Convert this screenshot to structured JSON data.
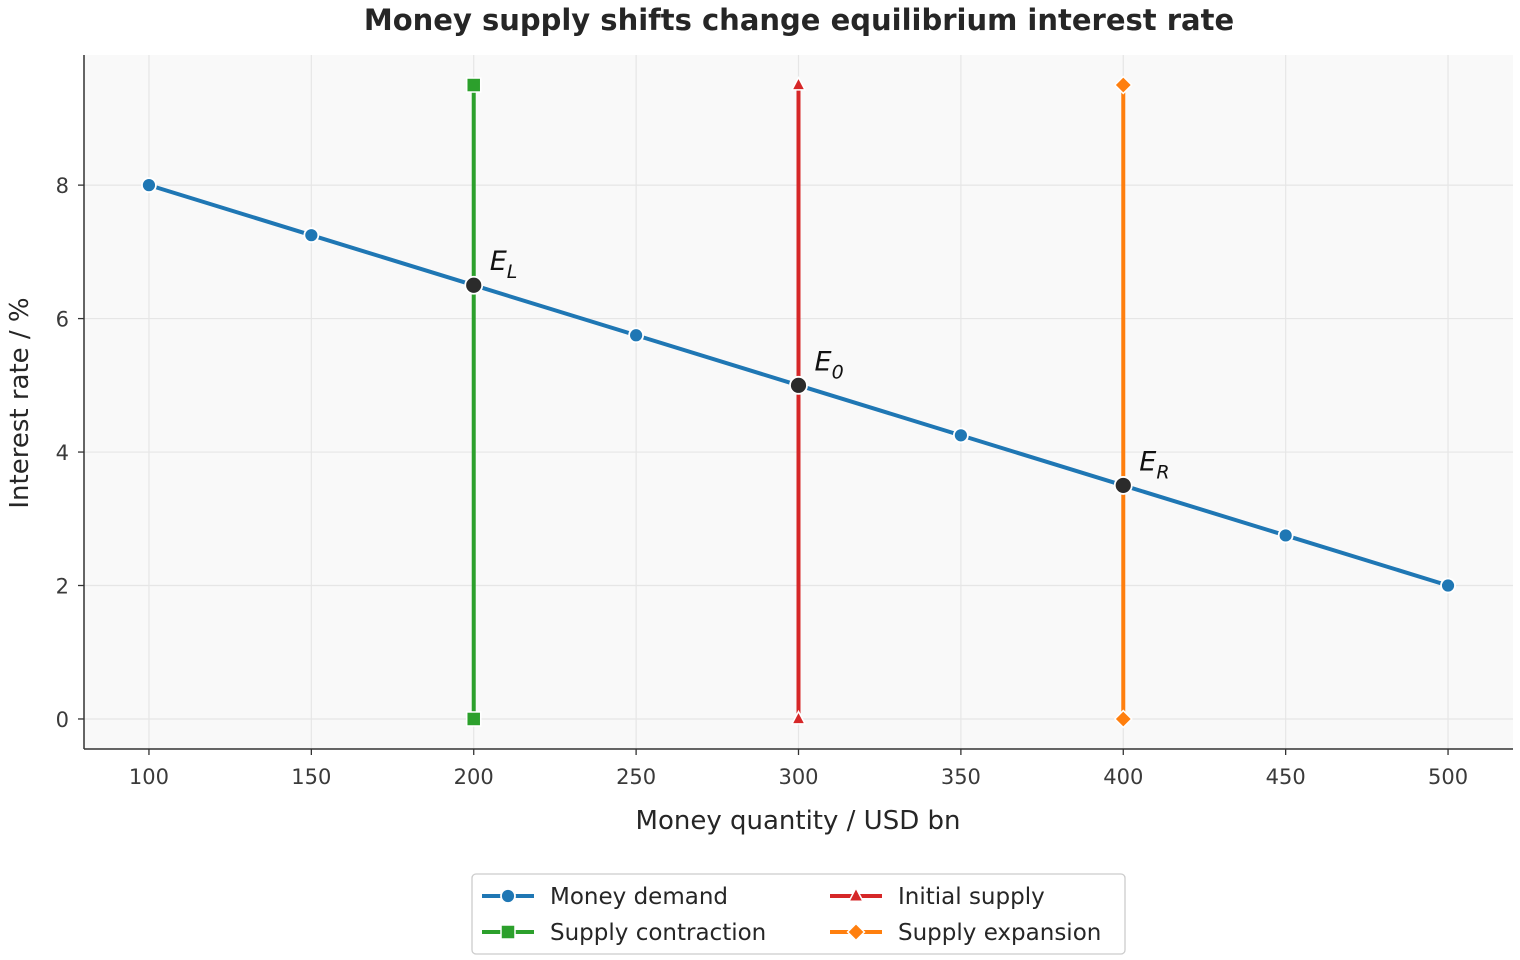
{
  "chart_data": {
    "type": "line",
    "title": "Money supply shifts change equilibrium interest rate",
    "xlabel": "Money quantity / USD bn",
    "ylabel": "Interest rate / %",
    "xlim": [
      80,
      520
    ],
    "ylim": [
      -0.45,
      9.95
    ],
    "xticks": [
      100,
      150,
      200,
      250,
      300,
      350,
      400,
      450,
      500
    ],
    "yticks": [
      0,
      2,
      4,
      6,
      8
    ],
    "grid": true,
    "legend_position": "bottom-center",
    "series": [
      {
        "name": "Money demand",
        "color": "#1f77b4",
        "marker": "circle",
        "x": [
          100,
          150,
          200,
          250,
          300,
          350,
          400,
          450,
          500
        ],
        "y": [
          8,
          7.25,
          6.5,
          5.75,
          5,
          4.25,
          3.5,
          2.75,
          2
        ]
      },
      {
        "name": "Supply contraction",
        "color": "#2ca02c",
        "marker": "square",
        "x": [
          200,
          200
        ],
        "y": [
          0,
          9.5
        ]
      },
      {
        "name": "Initial supply",
        "color": "#d62728",
        "marker": "triangle",
        "x": [
          300,
          300
        ],
        "y": [
          0,
          9.5
        ]
      },
      {
        "name": "Supply expansion",
        "color": "#ff7f0e",
        "marker": "diamond",
        "x": [
          400,
          400
        ],
        "y": [
          0,
          9.5
        ]
      }
    ],
    "equilibria": [
      {
        "label": "E",
        "sub": "L",
        "x": 200,
        "y": 6.5
      },
      {
        "label": "E",
        "sub": "0",
        "x": 300,
        "y": 5
      },
      {
        "label": "E",
        "sub": "R",
        "x": 400,
        "y": 3.5
      }
    ],
    "legend_order": [
      "Money demand",
      "Initial supply",
      "Supply contraction",
      "Supply expansion"
    ]
  }
}
